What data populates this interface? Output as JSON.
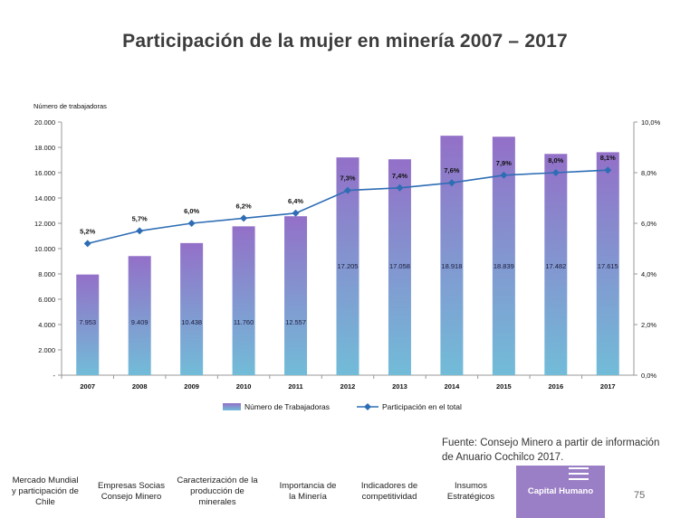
{
  "slide": {
    "title": "Participación de la mujer en minería 2007 – 2017",
    "source_line1": "Fuente: Consejo Minero a partir de información",
    "source_line2": "de Anuario Cochilco 2017.",
    "page_number": "75"
  },
  "nav": {
    "items": [
      {
        "label_lines": [
          "Mercado Mundial",
          "y participación de",
          "Chile"
        ]
      },
      {
        "label_lines": [
          "Empresas Socias",
          "Consejo Minero"
        ]
      },
      {
        "label_lines": [
          "Caracterización de la",
          "producción de",
          "minerales"
        ]
      },
      {
        "label_lines": [
          "Importancia de",
          "la Minería"
        ]
      },
      {
        "label_lines": [
          "Indicadores de",
          "competitividad"
        ]
      },
      {
        "label_lines": [
          "Insumos",
          "Estratégicos"
        ]
      },
      {
        "label_lines": [
          "Capital Humano"
        ],
        "active": true
      }
    ],
    "active_color": "#9b7fc6",
    "menu_icon": "hamburger-menu-icon"
  },
  "chart_data": {
    "type": "bar",
    "title": "",
    "ylabel": "Número de trabajadoras",
    "categories": [
      "2007",
      "2008",
      "2009",
      "2010",
      "2011",
      "2012",
      "2013",
      "2014",
      "2015",
      "2016",
      "2017"
    ],
    "series": [
      {
        "name": "Número de Trabajadoras",
        "type": "bar",
        "axis": "left",
        "values": [
          7953,
          9409,
          10438,
          11760,
          12557,
          17205,
          17058,
          18918,
          18839,
          17482,
          17615
        ],
        "value_labels": [
          "7.953",
          "9.409",
          "10.438",
          "11.760",
          "12.557",
          "17.205",
          "17.058",
          "18.918",
          "18.839",
          "17.482",
          "17.615"
        ],
        "color_top": "#9370c8",
        "color_bottom": "#72bcd8"
      },
      {
        "name": "Participación en el total",
        "type": "line",
        "axis": "right",
        "values": [
          5.2,
          5.7,
          6.0,
          6.2,
          6.4,
          7.3,
          7.4,
          7.6,
          7.9,
          8.0,
          8.1
        ],
        "value_labels": [
          "5,2%",
          "5,7%",
          "6,0%",
          "6,2%",
          "6,4%",
          "7,3%",
          "7,4%",
          "7,6%",
          "7,9%",
          "8,0%",
          "8,1%"
        ],
        "color": "#2e6db4"
      }
    ],
    "ylim_left": [
      0,
      20000
    ],
    "ylim_right": [
      0,
      10
    ],
    "left_ticks": [
      0,
      2000,
      4000,
      6000,
      8000,
      10000,
      12000,
      14000,
      16000,
      18000,
      20000
    ],
    "left_tick_labels": [
      "-",
      "2.000",
      "4.000",
      "6.000",
      "8.000",
      "10.000",
      "12.000",
      "14.000",
      "16.000",
      "18.000",
      "20.000"
    ],
    "right_ticks": [
      0,
      2,
      4,
      6,
      8,
      10
    ],
    "right_tick_labels": [
      "0,0%",
      "2,0%",
      "4,0%",
      "6,0%",
      "8,0%",
      "10,0%"
    ],
    "grid": false,
    "legend_position": "bottom"
  }
}
